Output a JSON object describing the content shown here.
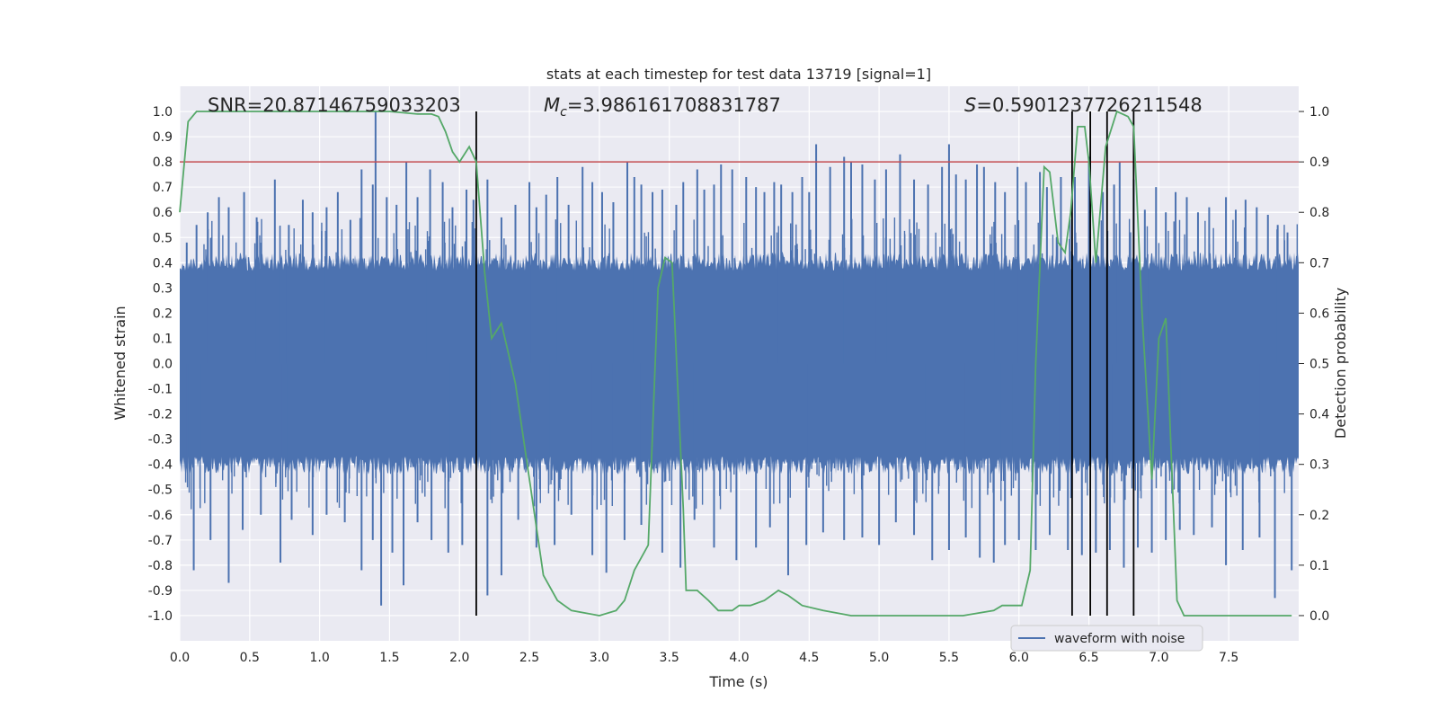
{
  "chart_data": {
    "type": "line",
    "title": "stats at each timestep for test data 13719 [signal=1]",
    "xlabel": "Time (s)",
    "ylabel": "Whitened strain",
    "y2label": "Detection probability",
    "xlim": [
      0,
      8
    ],
    "ylim": [
      -1.1,
      1.1
    ],
    "y2lim": [
      -0.05,
      1.05
    ],
    "xticks": [
      "0.0",
      "0.5",
      "1.0",
      "1.5",
      "2.0",
      "2.5",
      "3.0",
      "3.5",
      "4.0",
      "4.5",
      "5.0",
      "5.5",
      "6.0",
      "6.5",
      "7.0",
      "7.5"
    ],
    "yticks": [
      "-1.0",
      "-0.9",
      "-0.8",
      "-0.7",
      "-0.6",
      "-0.5",
      "-0.4",
      "-0.3",
      "-0.2",
      "-0.1",
      "0.0",
      "0.1",
      "0.2",
      "0.3",
      "0.4",
      "0.5",
      "0.6",
      "0.7",
      "0.8",
      "0.9",
      "1.0"
    ],
    "y2ticks": [
      "0.0",
      "0.1",
      "0.2",
      "0.3",
      "0.4",
      "0.5",
      "0.6",
      "0.7",
      "0.8",
      "0.9",
      "1.0"
    ],
    "grid": true,
    "legend_placement": "bottom-right",
    "annotations": {
      "snr": "SNR=20.87146759033203",
      "mc_symbol": "M",
      "mc_subscript": "c",
      "mc_value": "=3.986161708831787",
      "s_symbol": "S",
      "s_value": "=0.5901237726211548"
    },
    "threshold": {
      "value": 0.9,
      "axis": "right",
      "color": "#c44e52"
    },
    "vertical_lines": [
      2.12,
      6.38,
      6.51,
      6.63,
      6.82
    ],
    "series": [
      {
        "name": "waveform with noise",
        "axis": "left",
        "color": "#4c72b0",
        "style": "dense noise",
        "core_amplitude": 0.4,
        "spikes": [
          [
            0.05,
            0.48
          ],
          [
            0.12,
            0.55
          ],
          [
            0.2,
            0.6
          ],
          [
            0.28,
            0.66
          ],
          [
            0.35,
            0.62
          ],
          [
            0.46,
            0.68
          ],
          [
            0.55,
            0.58
          ],
          [
            0.68,
            0.73
          ],
          [
            0.78,
            0.55
          ],
          [
            0.88,
            0.65
          ],
          [
            0.95,
            0.6
          ],
          [
            1.05,
            0.62
          ],
          [
            1.13,
            0.68
          ],
          [
            1.22,
            0.57
          ],
          [
            1.3,
            0.77
          ],
          [
            1.38,
            0.71
          ],
          [
            1.4,
            1.0
          ],
          [
            1.48,
            0.66
          ],
          [
            1.55,
            0.63
          ],
          [
            1.62,
            0.8
          ],
          [
            1.7,
            0.66
          ],
          [
            1.79,
            0.77
          ],
          [
            1.88,
            0.72
          ],
          [
            1.95,
            0.62
          ],
          [
            2.05,
            0.69
          ],
          [
            2.1,
            0.65
          ],
          [
            2.2,
            0.73
          ],
          [
            2.3,
            0.58
          ],
          [
            2.4,
            0.63
          ],
          [
            2.5,
            0.72
          ],
          [
            2.55,
            0.62
          ],
          [
            2.62,
            0.67
          ],
          [
            2.7,
            0.74
          ],
          [
            2.78,
            0.63
          ],
          [
            2.88,
            0.78
          ],
          [
            2.95,
            0.72
          ],
          [
            3.02,
            0.68
          ],
          [
            3.1,
            0.64
          ],
          [
            3.2,
            0.8
          ],
          [
            3.25,
            0.74
          ],
          [
            3.3,
            0.71
          ],
          [
            3.38,
            0.68
          ],
          [
            3.45,
            0.69
          ],
          [
            3.55,
            0.63
          ],
          [
            3.6,
            0.72
          ],
          [
            3.7,
            0.77
          ],
          [
            3.75,
            0.69
          ],
          [
            3.82,
            0.71
          ],
          [
            3.87,
            0.79
          ],
          [
            3.95,
            0.77
          ],
          [
            4.05,
            0.74
          ],
          [
            4.12,
            0.7
          ],
          [
            4.18,
            0.68
          ],
          [
            4.25,
            0.72
          ],
          [
            4.3,
            0.71
          ],
          [
            4.38,
            0.68
          ],
          [
            4.45,
            0.74
          ],
          [
            4.5,
            0.68
          ],
          [
            4.55,
            0.87
          ],
          [
            4.65,
            0.78
          ],
          [
            4.75,
            0.82
          ],
          [
            4.8,
            0.8
          ],
          [
            4.88,
            0.79
          ],
          [
            4.97,
            0.73
          ],
          [
            5.05,
            0.77
          ],
          [
            5.15,
            0.83
          ],
          [
            5.25,
            0.73
          ],
          [
            5.35,
            0.71
          ],
          [
            5.45,
            0.78
          ],
          [
            5.5,
            0.87
          ],
          [
            5.55,
            0.75
          ],
          [
            5.62,
            0.73
          ],
          [
            5.7,
            0.79
          ],
          [
            5.75,
            0.78
          ],
          [
            5.83,
            0.72
          ],
          [
            5.9,
            0.68
          ],
          [
            5.99,
            0.78
          ],
          [
            6.05,
            0.72
          ],
          [
            6.15,
            0.76
          ],
          [
            6.2,
            0.7
          ],
          [
            6.3,
            0.74
          ],
          [
            6.4,
            0.74
          ],
          [
            6.5,
            0.82
          ],
          [
            6.6,
            0.68
          ],
          [
            6.68,
            0.71
          ],
          [
            6.72,
            0.8
          ],
          [
            6.82,
            0.73
          ],
          [
            6.9,
            0.61
          ],
          [
            6.98,
            0.7
          ],
          [
            7.05,
            0.6
          ],
          [
            7.12,
            0.68
          ],
          [
            7.2,
            0.66
          ],
          [
            7.28,
            0.6
          ],
          [
            7.36,
            0.62
          ],
          [
            7.48,
            0.66
          ],
          [
            7.55,
            0.61
          ],
          [
            7.62,
            0.65
          ],
          [
            7.7,
            0.62
          ],
          [
            7.78,
            0.59
          ],
          [
            7.85,
            0.55
          ],
          [
            7.92,
            0.52
          ]
        ],
        "negative_spikes": [
          [
            0.1,
            -0.82
          ],
          [
            0.22,
            -0.7
          ],
          [
            0.35,
            -0.87
          ],
          [
            0.45,
            -0.66
          ],
          [
            0.58,
            -0.6
          ],
          [
            0.72,
            -0.79
          ],
          [
            0.8,
            -0.62
          ],
          [
            0.95,
            -0.68
          ],
          [
            1.05,
            -0.6
          ],
          [
            1.18,
            -0.63
          ],
          [
            1.3,
            -0.82
          ],
          [
            1.38,
            -0.7
          ],
          [
            1.44,
            -0.96
          ],
          [
            1.52,
            -0.75
          ],
          [
            1.6,
            -0.88
          ],
          [
            1.7,
            -0.63
          ],
          [
            1.8,
            -0.7
          ],
          [
            1.92,
            -0.75
          ],
          [
            2.02,
            -0.72
          ],
          [
            2.2,
            -0.92
          ],
          [
            2.3,
            -0.84
          ],
          [
            2.42,
            -0.62
          ],
          [
            2.55,
            -0.73
          ],
          [
            2.68,
            -0.72
          ],
          [
            2.8,
            -0.6
          ],
          [
            2.95,
            -0.76
          ],
          [
            3.05,
            -0.83
          ],
          [
            3.18,
            -0.7
          ],
          [
            3.3,
            -0.64
          ],
          [
            3.45,
            -0.75
          ],
          [
            3.58,
            -0.81
          ],
          [
            3.68,
            -0.62
          ],
          [
            3.82,
            -0.73
          ],
          [
            3.98,
            -0.78
          ],
          [
            4.12,
            -0.73
          ],
          [
            4.22,
            -0.65
          ],
          [
            4.35,
            -0.84
          ],
          [
            4.48,
            -0.72
          ],
          [
            4.6,
            -0.67
          ],
          [
            4.75,
            -0.7
          ],
          [
            4.88,
            -0.69
          ],
          [
            5.0,
            -0.72
          ],
          [
            5.12,
            -0.63
          ],
          [
            5.25,
            -0.68
          ],
          [
            5.38,
            -0.78
          ],
          [
            5.5,
            -0.74
          ],
          [
            5.62,
            -0.69
          ],
          [
            5.72,
            -0.77
          ],
          [
            5.82,
            -0.79
          ],
          [
            5.9,
            -0.72
          ],
          [
            6.0,
            -0.7
          ],
          [
            6.12,
            -0.74
          ],
          [
            6.22,
            -0.68
          ],
          [
            6.35,
            -0.74
          ],
          [
            6.45,
            -0.76
          ],
          [
            6.55,
            -0.75
          ],
          [
            6.65,
            -0.74
          ],
          [
            6.75,
            -0.81
          ],
          [
            6.85,
            -0.73
          ],
          [
            6.95,
            -0.75
          ],
          [
            7.05,
            -0.7
          ],
          [
            7.15,
            -0.66
          ],
          [
            7.25,
            -0.68
          ],
          [
            7.38,
            -0.65
          ],
          [
            7.48,
            -0.8
          ],
          [
            7.6,
            -0.74
          ],
          [
            7.72,
            -0.69
          ],
          [
            7.83,
            -0.93
          ],
          [
            7.95,
            -0.82
          ]
        ]
      },
      {
        "name": "",
        "axis": "right",
        "color": "#55a868",
        "x": [
          0.0,
          0.06,
          0.12,
          0.3,
          0.6,
          0.9,
          1.2,
          1.5,
          1.7,
          1.75,
          1.8,
          1.85,
          1.9,
          1.95,
          2.0,
          2.07,
          2.12,
          2.18,
          2.23,
          2.3,
          2.4,
          2.5,
          2.6,
          2.7,
          2.8,
          3.0,
          3.12,
          3.18,
          3.25,
          3.35,
          3.42,
          3.47,
          3.52,
          3.6,
          3.62,
          3.7,
          3.78,
          3.85,
          3.95,
          4.0,
          4.08,
          4.18,
          4.28,
          4.35,
          4.45,
          4.6,
          4.8,
          5.0,
          5.3,
          5.6,
          5.82,
          5.88,
          5.95,
          6.02,
          6.08,
          6.12,
          6.18,
          6.22,
          6.28,
          6.33,
          6.37,
          6.42,
          6.47,
          6.5,
          6.55,
          6.62,
          6.7,
          6.78,
          6.82,
          6.88,
          6.95,
          7.0,
          7.05,
          7.13,
          7.18,
          7.3,
          7.4,
          7.6,
          7.8,
          7.95
        ],
        "y": [
          0.8,
          0.98,
          1.0,
          1.0,
          1.0,
          1.0,
          1.0,
          1.0,
          0.995,
          0.995,
          0.995,
          0.99,
          0.96,
          0.92,
          0.9,
          0.93,
          0.9,
          0.68,
          0.55,
          0.58,
          0.46,
          0.27,
          0.08,
          0.03,
          0.01,
          0.0,
          0.01,
          0.03,
          0.09,
          0.14,
          0.65,
          0.71,
          0.7,
          0.21,
          0.05,
          0.05,
          0.03,
          0.01,
          0.01,
          0.02,
          0.02,
          0.03,
          0.05,
          0.04,
          0.02,
          0.01,
          0.0,
          0.0,
          0.0,
          0.0,
          0.01,
          0.02,
          0.02,
          0.02,
          0.09,
          0.5,
          0.89,
          0.88,
          0.74,
          0.72,
          0.8,
          0.97,
          0.97,
          0.9,
          0.7,
          0.93,
          1.0,
          0.99,
          0.97,
          0.6,
          0.27,
          0.55,
          0.59,
          0.03,
          0.0,
          0.0,
          0.0,
          0.0,
          0.0,
          0.0
        ]
      }
    ]
  }
}
